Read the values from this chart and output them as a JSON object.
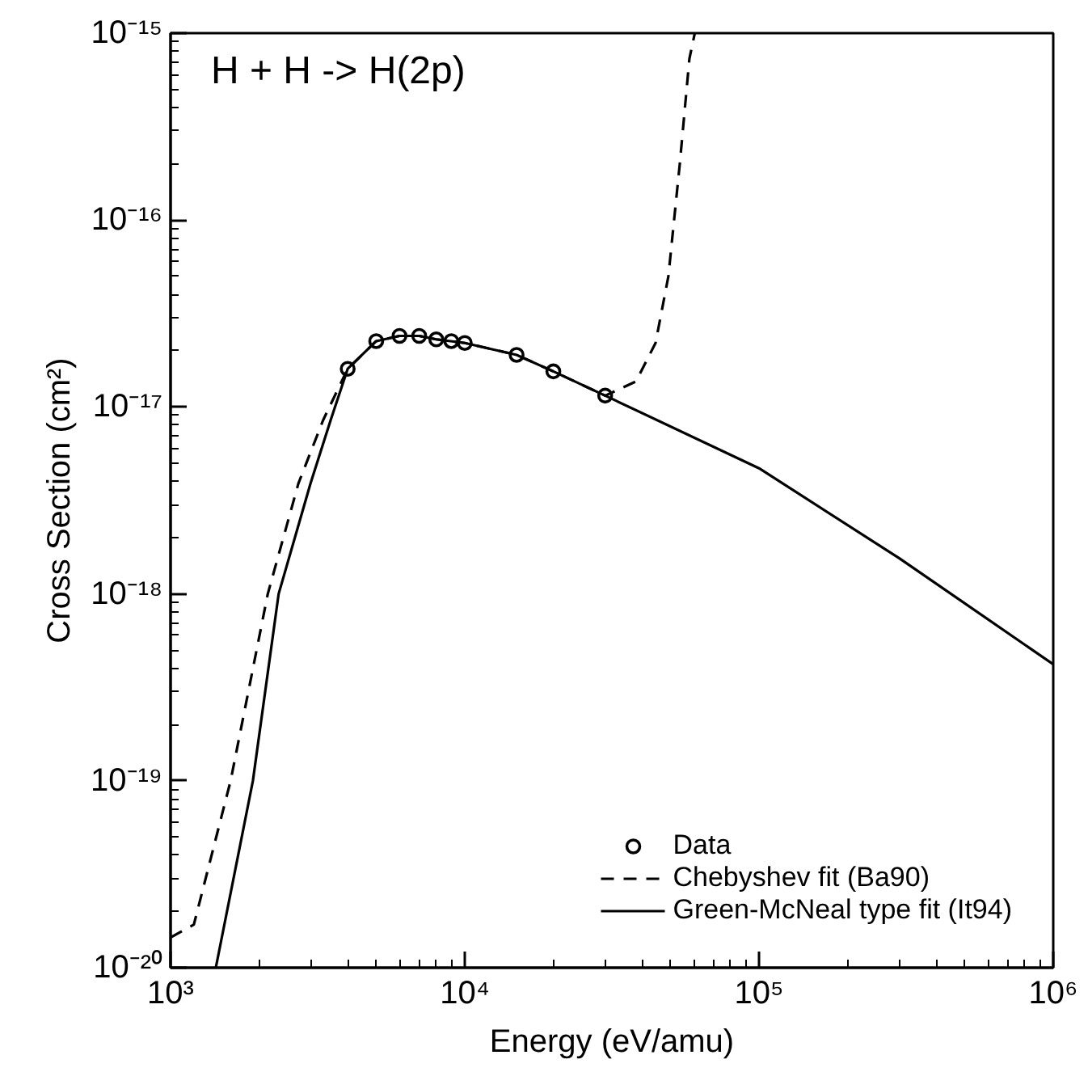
{
  "chart_data": {
    "type": "line",
    "xlabel": "Energy (eV/amu)",
    "ylabel": "Cross Section (cm²)",
    "annotations": [
      "H + H -> H(2p)"
    ],
    "log": "xy",
    "grid": false,
    "legend": "bottom right",
    "xlim": [
      1000,
      1000000
    ],
    "ylim": [
      1e-20,
      1e-15
    ],
    "xticks": [
      {
        "value": 1000,
        "label": "10³"
      },
      {
        "value": 10000,
        "label": "10⁴"
      },
      {
        "value": 100000,
        "label": "10⁵"
      },
      {
        "value": 1000000,
        "label": "10⁶"
      }
    ],
    "yticks": [
      {
        "value": 1e-20,
        "label": "10⁻²⁰"
      },
      {
        "value": 1e-19,
        "label": "10⁻¹⁹"
      },
      {
        "value": 1e-18,
        "label": "10⁻¹⁸"
      },
      {
        "value": 1e-17,
        "label": "10⁻¹⁷"
      },
      {
        "value": 1e-16,
        "label": "10⁻¹⁶"
      },
      {
        "value": 1e-15,
        "label": "10⁻¹⁵"
      }
    ],
    "series": [
      {
        "name": "Data",
        "type": "scatter",
        "marker": "circle",
        "color": "#000000",
        "x": [
          4000,
          5000,
          6000,
          7000,
          8000,
          9000,
          10000,
          15000,
          20000,
          30000
        ],
        "values": [
          1.6e-17,
          2.25e-17,
          2.4e-17,
          2.4e-17,
          2.3e-17,
          2.25e-17,
          2.2e-17,
          1.9e-17,
          1.55e-17,
          1.15e-17
        ]
      },
      {
        "name": "Chebyshev fit (Ba90)",
        "line_style": "dashed",
        "color": "#000000",
        "x": [
          1000,
          1200,
          1600,
          2140,
          2720,
          3300,
          4000,
          5000,
          6000,
          7000,
          8000,
          10000,
          15000,
          20000,
          30000,
          38200,
          44500,
          49200,
          53800,
          58000,
          60500
        ],
        "values": [
          1.45e-20,
          1.7e-20,
          1e-19,
          1e-18,
          3.9e-18,
          8.5e-18,
          1.6e-17,
          2.25e-17,
          2.4e-17,
          2.4e-17,
          2.3e-17,
          2.2e-17,
          1.9e-17,
          1.55e-17,
          1.15e-17,
          1.37e-17,
          2.2e-17,
          5e-17,
          2e-16,
          7.3e-16,
          1e-15
        ]
      },
      {
        "name": "Green-McNeal type fit (It94)",
        "line_style": "solid",
        "color": "#000000",
        "x": [
          1425,
          1905,
          2330,
          2990,
          3500,
          4000,
          5000,
          6000,
          7000,
          8000,
          10000,
          15000,
          20000,
          30000,
          100000,
          300000,
          1000000
        ],
        "values": [
          1e-20,
          1e-19,
          1e-18,
          3.9e-18,
          8.5e-18,
          1.6e-17,
          2.25e-17,
          2.4e-17,
          2.4e-17,
          2.3e-17,
          2.2e-17,
          1.9e-17,
          1.55e-17,
          1.15e-17,
          4.7e-18,
          1.55e-18,
          4.2e-19
        ]
      }
    ]
  }
}
